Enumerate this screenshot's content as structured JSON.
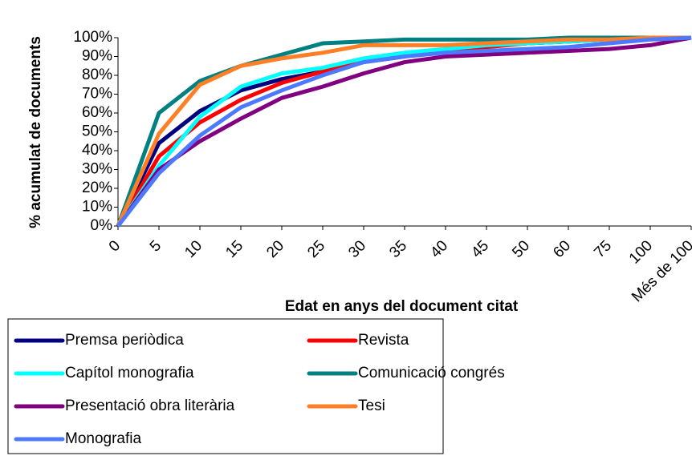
{
  "chart_data": {
    "type": "line",
    "xlabel": "Edat en anys del document citat",
    "ylabel": "% acumulat de documents",
    "categories": [
      "0",
      "5",
      "10",
      "15",
      "20",
      "25",
      "30",
      "35",
      "40",
      "45",
      "50",
      "60",
      "75",
      "100",
      "Més de 100"
    ],
    "ylim": [
      0,
      100
    ],
    "yticks": [
      {
        "value": 0,
        "label": "0%"
      },
      {
        "value": 10,
        "label": "10%"
      },
      {
        "value": 20,
        "label": "20%"
      },
      {
        "value": 30,
        "label": "30%"
      },
      {
        "value": 40,
        "label": "40%"
      },
      {
        "value": 50,
        "label": "50%"
      },
      {
        "value": 60,
        "label": "60%"
      },
      {
        "value": 70,
        "label": "70%"
      },
      {
        "value": 80,
        "label": "80%"
      },
      {
        "value": 90,
        "label": "90%"
      },
      {
        "value": 100,
        "label": "100%"
      }
    ],
    "legend": "bottom",
    "series": [
      {
        "name": "Premsa periòdica",
        "color": "#000080",
        "values": [
          0,
          44,
          61,
          72,
          78,
          82,
          87,
          90,
          94,
          96,
          97,
          98,
          99,
          100,
          100
        ]
      },
      {
        "name": "Revista",
        "color": "#ff0000",
        "values": [
          0,
          37,
          55,
          67,
          76,
          82,
          88,
          91,
          93,
          95,
          97,
          98,
          99,
          100,
          100
        ]
      },
      {
        "name": "Capítol monografia",
        "color": "#00ffff",
        "values": [
          0,
          32,
          58,
          74,
          81,
          84,
          89,
          92,
          94,
          96,
          97,
          98,
          99,
          100,
          100
        ]
      },
      {
        "name": "Comunicació congrés",
        "color": "#008080",
        "values": [
          0,
          60,
          77,
          85,
          91,
          97,
          98,
          99,
          99,
          99,
          99,
          100,
          100,
          100,
          100
        ]
      },
      {
        "name": "Presentació obra literària",
        "color": "#800080",
        "values": [
          0,
          30,
          45,
          57,
          68,
          74,
          81,
          87,
          90,
          91,
          92,
          93,
          94,
          96,
          100
        ]
      },
      {
        "name": "Tesi",
        "color": "#ff7f27",
        "values": [
          0,
          49,
          75,
          85,
          89,
          92,
          96,
          96,
          96,
          97,
          98,
          99,
          99,
          100,
          100
        ]
      },
      {
        "name": "Monografia",
        "color": "#4d79ff",
        "values": [
          0,
          28,
          48,
          63,
          72,
          80,
          87,
          90,
          92,
          93,
          94,
          95,
          97,
          99,
          100
        ]
      }
    ]
  }
}
